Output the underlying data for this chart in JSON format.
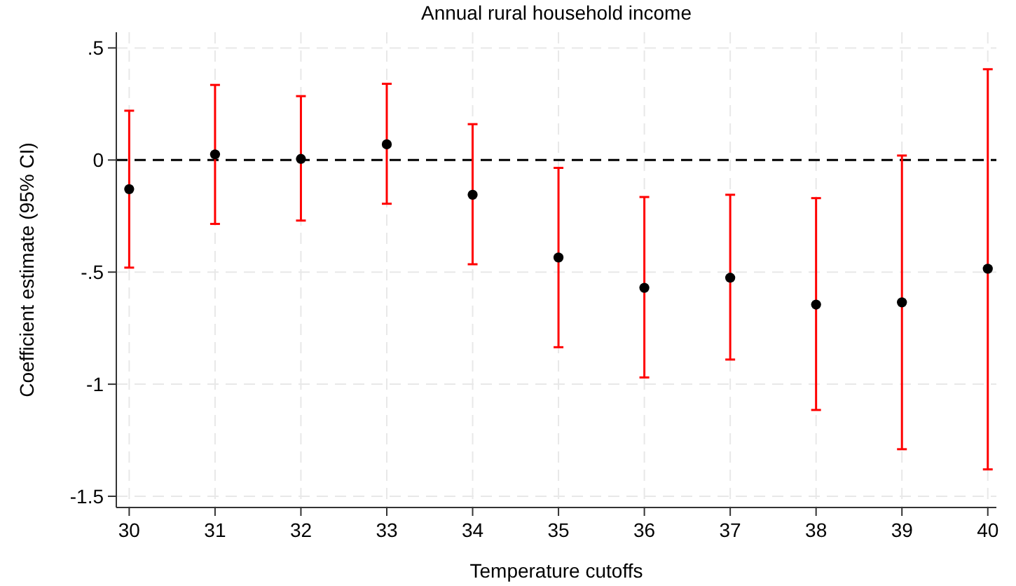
{
  "chart_data": {
    "type": "scatter",
    "title": "Annual rural household income",
    "xlabel": "Temperature cutoffs",
    "ylabel": "Coefficient estimate (95% CI)",
    "x": [
      30,
      31,
      32,
      33,
      34,
      35,
      36,
      37,
      38,
      39,
      40
    ],
    "series": [
      {
        "color": "#000000",
        "values": [
          -0.13,
          0.025,
          0.005,
          0.07,
          -0.155,
          -0.435,
          -0.57,
          -0.525,
          -0.645,
          -0.635,
          -0.485
        ],
        "errors": [
          [
            -0.48,
            0.22
          ],
          [
            -0.285,
            0.335
          ],
          [
            -0.27,
            0.285
          ],
          [
            -0.195,
            0.34
          ],
          [
            -0.465,
            0.16
          ],
          [
            -0.835,
            -0.035
          ],
          [
            -0.97,
            -0.165
          ],
          [
            -0.89,
            -0.155
          ],
          [
            -1.115,
            -0.17
          ],
          [
            -1.29,
            0.02
          ],
          [
            -1.38,
            0.405
          ]
        ]
      }
    ],
    "xlim": [
      29.85,
      40.1
    ],
    "ylim": [
      -1.55,
      0.57
    ],
    "xticks": [
      30,
      31,
      32,
      33,
      34,
      35,
      36,
      37,
      38,
      39,
      40
    ],
    "yticks": [
      {
        "value": -1.5,
        "label": "-1.5"
      },
      {
        "value": -1,
        "label": "-1"
      },
      {
        "value": -0.5,
        "label": "-.5"
      },
      0,
      {
        "value": 0.5,
        "label": ".5"
      }
    ],
    "grid": true,
    "marker": "circle",
    "ref_lines": [
      {
        "axis": "y",
        "value": 0,
        "color": "#000000",
        "line_style": "dashed"
      }
    ]
  }
}
